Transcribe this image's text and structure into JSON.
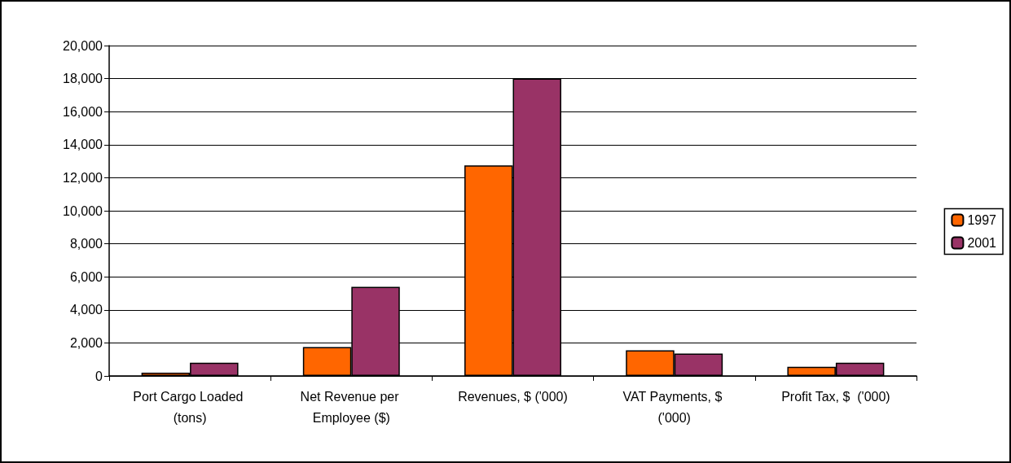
{
  "chart_data": {
    "type": "bar",
    "categories": [
      "Port Cargo Loaded (tons)",
      "Net Revenue per Employee ($)",
      "Revenues, $ ('000)",
      "VAT Payments, $ ('000)",
      "Profit Tax, $  ('000)"
    ],
    "series": [
      {
        "name": "1997",
        "color": "#ff6600",
        "values": [
          200,
          1750,
          12750,
          1550,
          550
        ]
      },
      {
        "name": "2001",
        "color": "#993366",
        "values": [
          800,
          5400,
          18000,
          1350,
          800
        ]
      }
    ],
    "ylim": [
      0,
      20000
    ],
    "yticks": [
      0,
      {
        "value": 2000,
        "label": "2,000"
      },
      {
        "value": 4000,
        "label": "4,000"
      },
      {
        "value": 6000,
        "label": "6,000"
      },
      {
        "value": 8000,
        "label": "8,000"
      },
      {
        "value": 10000,
        "label": "10,000"
      },
      {
        "value": 12000,
        "label": "12,000"
      },
      {
        "value": 14000,
        "label": "14,000"
      },
      {
        "value": 16000,
        "label": "16,000"
      },
      {
        "value": 18000,
        "label": "18,000"
      },
      {
        "value": 20000,
        "label": "20,000"
      }
    ],
    "grid": "y",
    "legend": "right"
  }
}
